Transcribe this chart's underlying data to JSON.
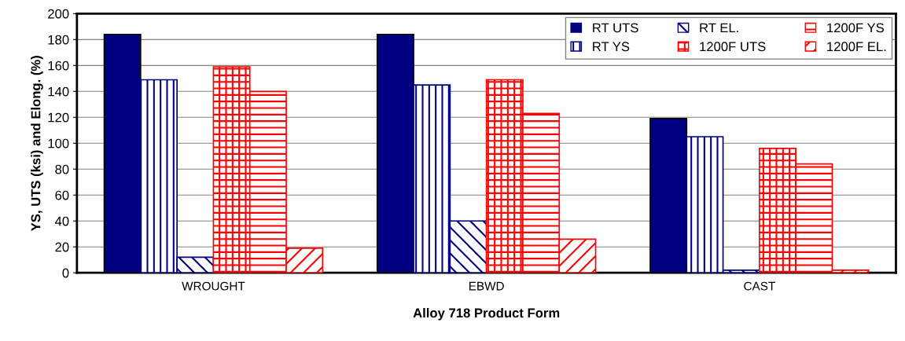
{
  "chart_data": {
    "type": "bar",
    "xlabel": "Alloy 718 Product Form",
    "ylabel": "YS, UTS (ksi) and Elong. (%)",
    "categories": [
      "WROUGHT",
      "EBWD",
      "CAST"
    ],
    "series": [
      {
        "name": "RT UTS",
        "color": "#000080",
        "values": [
          184,
          184,
          119
        ]
      },
      {
        "name": "RT YS",
        "color": "#000080",
        "values": [
          149,
          145,
          105
        ]
      },
      {
        "name": "RT EL.",
        "color": "#000080",
        "values": [
          12,
          40,
          2
        ]
      },
      {
        "name": "1200F UTS",
        "color": "#ff0000",
        "values": [
          159,
          149,
          96
        ]
      },
      {
        "name": "1200F YS",
        "color": "#ff0000",
        "values": [
          140,
          123,
          84
        ]
      },
      {
        "name": "1200F EL.",
        "color": "#ff0000",
        "values": [
          19,
          26,
          2
        ]
      }
    ],
    "ylim": [
      0,
      200
    ],
    "yticks": [
      0,
      20,
      40,
      60,
      80,
      100,
      120,
      140,
      160,
      180,
      200
    ],
    "grid": "y",
    "legend": "top right"
  }
}
